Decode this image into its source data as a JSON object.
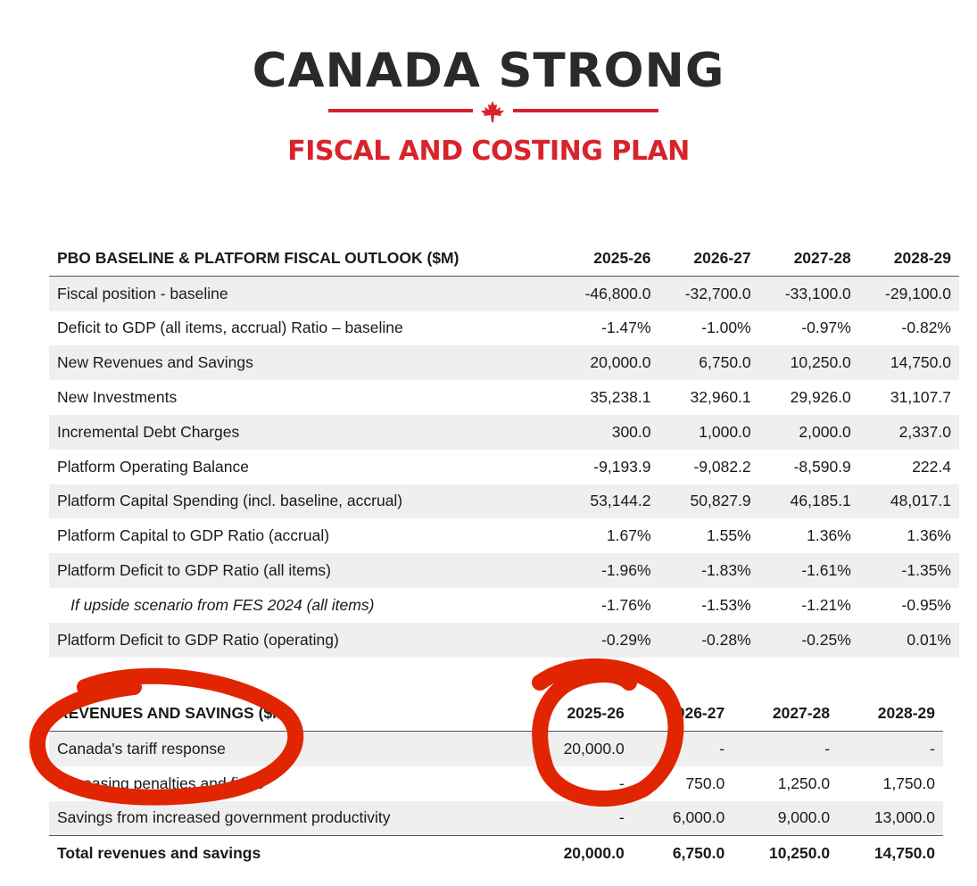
{
  "header": {
    "title": "CANADA STRONG",
    "subtitle": "FISCAL AND COSTING PLAN",
    "accent_color": "#d8232a",
    "divider_icon": "maple-leaf-icon"
  },
  "outlook_table": {
    "title": "PBO BASELINE & PLATFORM FISCAL OUTLOOK ($M)",
    "years": [
      "2025-26",
      "2026-27",
      "2027-28",
      "2028-29"
    ],
    "rows": [
      {
        "label": "Fiscal position - baseline",
        "values": [
          "-46,800.0",
          "-32,700.0",
          "-33,100.0",
          "-29,100.0"
        ]
      },
      {
        "label": "Deficit to GDP (all items, accrual) Ratio – baseline",
        "values": [
          "-1.47%",
          "-1.00%",
          "-0.97%",
          "-0.82%"
        ]
      },
      {
        "label": "New Revenues and Savings",
        "values": [
          "20,000.0",
          "6,750.0",
          "10,250.0",
          "14,750.0"
        ]
      },
      {
        "label": "New Investments",
        "values": [
          "35,238.1",
          "32,960.1",
          "29,926.0",
          "31,107.7"
        ]
      },
      {
        "label": "Incremental Debt Charges",
        "values": [
          "300.0",
          "1,000.0",
          "2,000.0",
          "2,337.0"
        ]
      },
      {
        "label": "Platform Operating Balance",
        "values": [
          "-9,193.9",
          "-9,082.2",
          "-8,590.9",
          "222.4"
        ]
      },
      {
        "label": "Platform Capital Spending (incl. baseline, accrual)",
        "values": [
          "53,144.2",
          "50,827.9",
          "46,185.1",
          "48,017.1"
        ]
      },
      {
        "label": "Platform Capital to GDP Ratio (accrual)",
        "values": [
          "1.67%",
          "1.55%",
          "1.36%",
          "1.36%"
        ]
      },
      {
        "label": "Platform Deficit to GDP Ratio (all items)",
        "values": [
          "-1.96%",
          "-1.83%",
          "-1.61%",
          "-1.35%"
        ]
      },
      {
        "label": "If upside scenario from FES 2024 (all items)",
        "values": [
          "-1.76%",
          "-1.53%",
          "-1.21%",
          "-0.95%"
        ]
      },
      {
        "label": "Platform Deficit to GDP Ratio (operating)",
        "values": [
          "-0.29%",
          "-0.28%",
          "-0.25%",
          "0.01%"
        ]
      }
    ]
  },
  "revenues_table": {
    "title": "REVENUES AND SAVINGS ($M)",
    "years": [
      "2025-26",
      "2026-27",
      "2027-28",
      "2028-29"
    ],
    "rows": [
      {
        "label": "Canada's tariff response",
        "values": [
          "20,000.0",
          "-",
          "-",
          "-"
        ]
      },
      {
        "label": "Increasing penalties and fines",
        "values": [
          "-",
          "750.0",
          "1,250.0",
          "1,750.0"
        ]
      },
      {
        "label": "Savings from increased government productivity",
        "values": [
          "-",
          "6,000.0",
          "9,000.0",
          "13,000.0"
        ]
      }
    ],
    "total": {
      "label": "Total revenues and savings",
      "values": [
        "20,000.0",
        "6,750.0",
        "10,250.0",
        "14,750.0"
      ]
    }
  },
  "annotation": {
    "color": "#e02500"
  }
}
